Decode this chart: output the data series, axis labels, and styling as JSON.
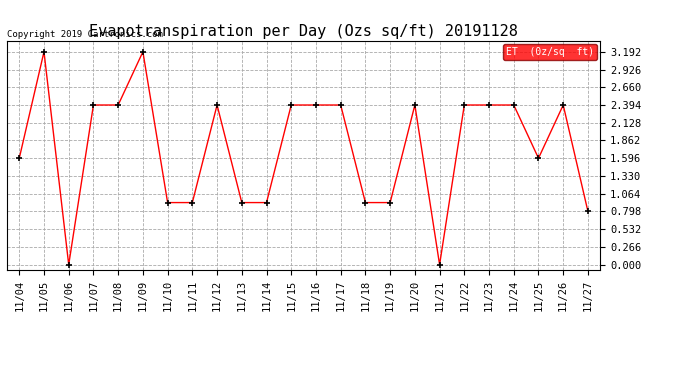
{
  "title": "Evapotranspiration per Day (Ozs sq/ft) 20191128",
  "copyright_text": "Copyright 2019 Cartronics.com",
  "legend_label": "ET  (0z/sq  ft)",
  "x_labels": [
    "11/04",
    "11/05",
    "11/06",
    "11/07",
    "11/08",
    "11/09",
    "11/10",
    "11/11",
    "11/12",
    "11/13",
    "11/14",
    "11/15",
    "11/16",
    "11/17",
    "11/18",
    "11/19",
    "11/20",
    "11/21",
    "11/22",
    "11/23",
    "11/24",
    "11/25",
    "11/26",
    "11/27"
  ],
  "y_values": [
    1.596,
    3.192,
    0.0,
    2.394,
    2.394,
    3.192,
    0.931,
    0.931,
    2.394,
    0.931,
    0.931,
    2.394,
    2.394,
    2.394,
    0.931,
    0.931,
    2.394,
    0.0,
    2.394,
    2.394,
    2.394,
    1.596,
    2.394,
    0.798
  ],
  "y_ticks": [
    0.0,
    0.266,
    0.532,
    0.798,
    1.064,
    1.33,
    1.596,
    1.862,
    2.128,
    2.394,
    2.66,
    2.926,
    3.192
  ],
  "line_color": "red",
  "marker_color": "black",
  "bg_color": "#ffffff",
  "grid_color": "#aaaaaa",
  "legend_label_display": "ET  (0z/sq  ft)",
  "title_fontsize": 11,
  "tick_fontsize": 7.5,
  "copyright_fontsize": 6.5
}
